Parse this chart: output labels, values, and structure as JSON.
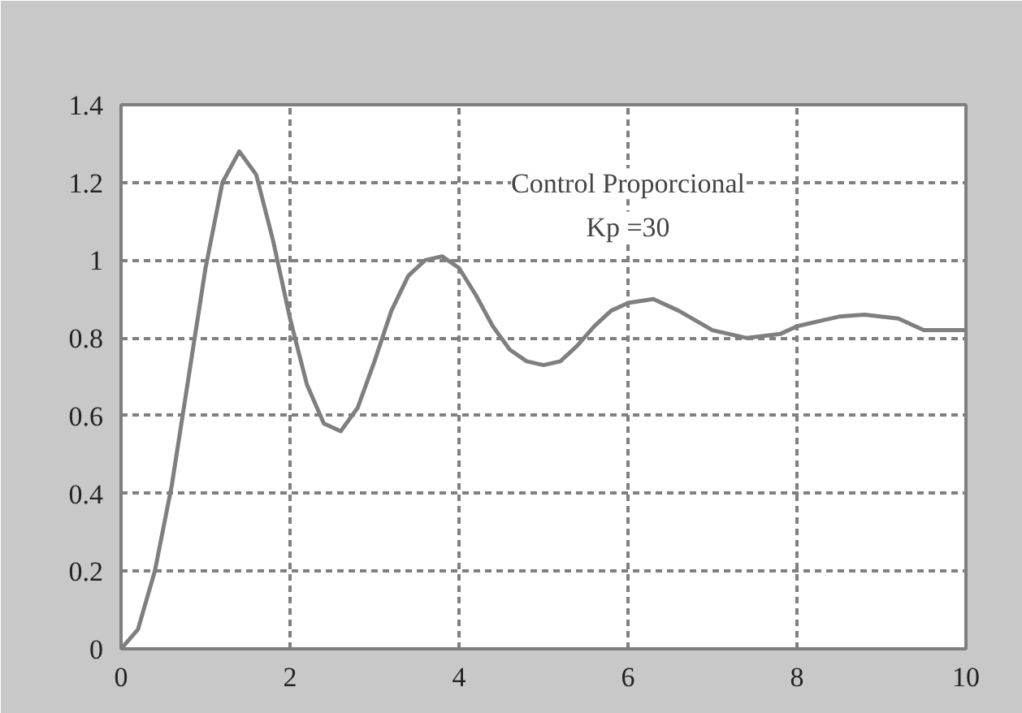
{
  "chart_data": {
    "type": "line",
    "x": [
      0,
      0.2,
      0.4,
      0.6,
      0.8,
      1.0,
      1.2,
      1.4,
      1.6,
      1.8,
      2.0,
      2.2,
      2.4,
      2.6,
      2.8,
      3.0,
      3.2,
      3.4,
      3.6,
      3.8,
      4.0,
      4.2,
      4.4,
      4.6,
      4.8,
      5.0,
      5.2,
      5.4,
      5.6,
      5.8,
      6.0,
      6.3,
      6.6,
      7.0,
      7.4,
      7.8,
      8.0,
      8.5,
      8.8,
      9.2,
      9.5,
      10
    ],
    "series": [
      {
        "color": "#7f7f7f",
        "values": [
          0,
          0.05,
          0.2,
          0.42,
          0.7,
          0.98,
          1.2,
          1.28,
          1.22,
          1.05,
          0.85,
          0.68,
          0.58,
          0.56,
          0.62,
          0.74,
          0.87,
          0.96,
          1.0,
          1.01,
          0.98,
          0.91,
          0.83,
          0.77,
          0.74,
          0.73,
          0.74,
          0.78,
          0.83,
          0.87,
          0.89,
          0.9,
          0.87,
          0.82,
          0.8,
          0.81,
          0.83,
          0.855,
          0.86,
          0.85,
          0.82,
          0.82
        ]
      }
    ],
    "xlim": [
      0,
      10
    ],
    "ylim": [
      0,
      1.4
    ],
    "xticks": [
      0,
      2,
      4,
      6,
      8,
      10
    ],
    "yticks": [
      0,
      0.2,
      0.4,
      0.6,
      0.8,
      1,
      1.2,
      1.4
    ],
    "grid": true,
    "line_style": "solid",
    "marker": "none",
    "annotations": [
      "Control Proporcional",
      "Kp =30"
    ]
  }
}
